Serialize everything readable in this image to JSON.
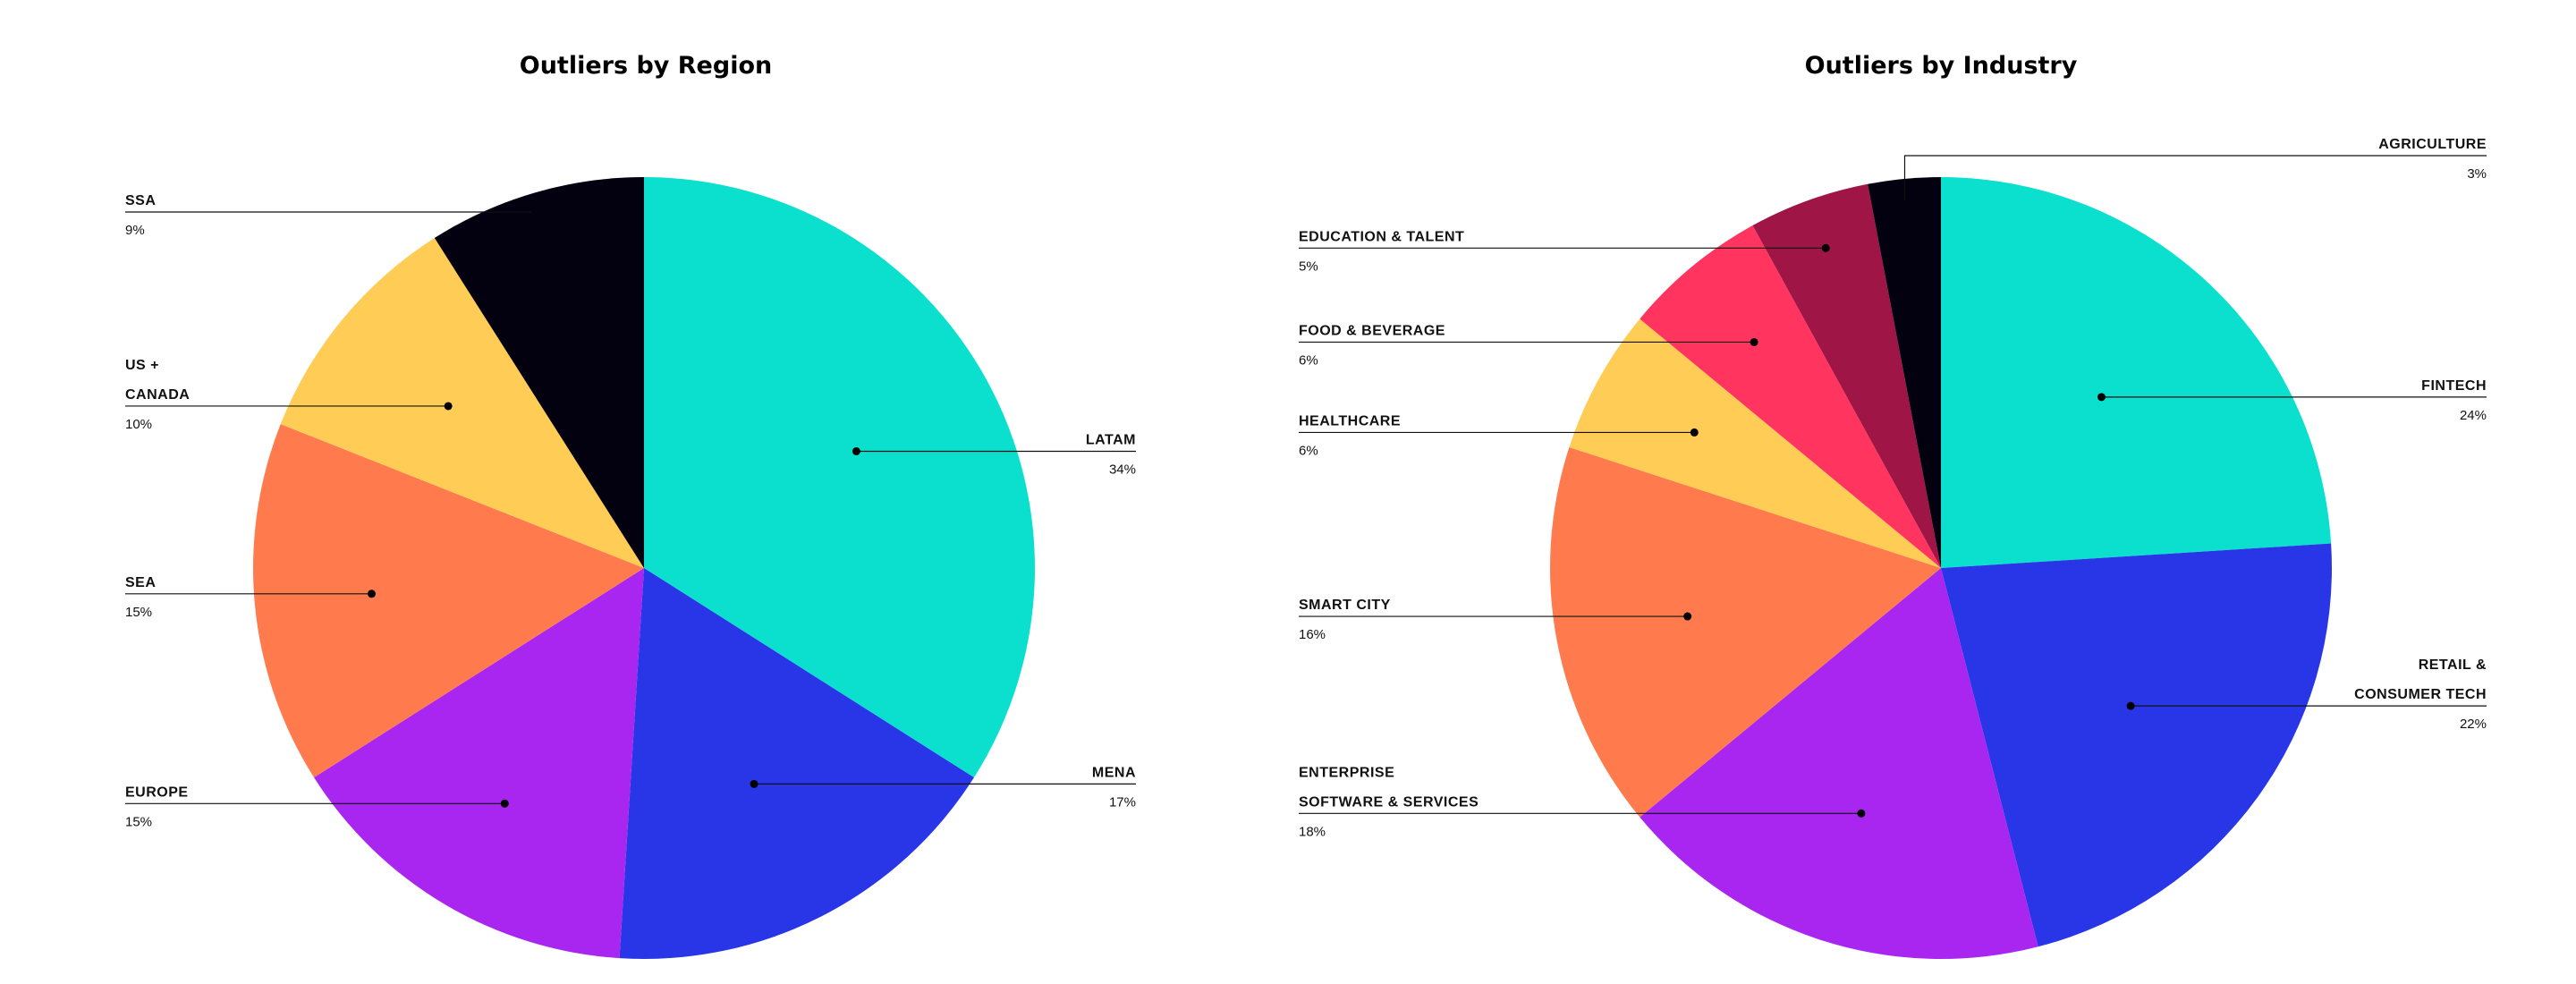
{
  "chart_data": [
    {
      "type": "pie",
      "title": "Outliers by Region",
      "slices": [
        {
          "label": [
            "LATAM"
          ],
          "value": 34,
          "pct_text": "34%",
          "color": "#0BE0CF"
        },
        {
          "label": [
            "MENA"
          ],
          "value": 17,
          "pct_text": "17%",
          "color": "#2836E8"
        },
        {
          "label": [
            "EUROPE"
          ],
          "value": 15,
          "pct_text": "15%",
          "color": "#A826F0"
        },
        {
          "label": [
            "SEA"
          ],
          "value": 15,
          "pct_text": "15%",
          "color": "#FF7A4D"
        },
        {
          "label": [
            "US +",
            "CANADA"
          ],
          "value": 10,
          "pct_text": "10%",
          "color": "#FFCC55"
        },
        {
          "label": [
            "SSA"
          ],
          "value": 9,
          "pct_text": "9%",
          "color": "#03000F"
        }
      ]
    },
    {
      "type": "pie",
      "title": "Outliers by Industry",
      "slices": [
        {
          "label": [
            "FINTECH"
          ],
          "value": 24,
          "pct_text": "24%",
          "color": "#0BE0CF"
        },
        {
          "label": [
            "RETAIL &",
            "CONSUMER TECH"
          ],
          "value": 22,
          "pct_text": "22%",
          "color": "#2836E8"
        },
        {
          "label": [
            "ENTERPRISE",
            "SOFTWARE & SERVICES"
          ],
          "value": 18,
          "pct_text": "18%",
          "color": "#A826F0"
        },
        {
          "label": [
            "SMART CITY"
          ],
          "value": 16,
          "pct_text": "16%",
          "color": "#FF7A4D"
        },
        {
          "label": [
            "HEALTHCARE"
          ],
          "value": 6,
          "pct_text": "6%",
          "color": "#FFCC55"
        },
        {
          "label": [
            "FOOD & BEVERAGE"
          ],
          "value": 6,
          "pct_text": "6%",
          "color": "#FF3560"
        },
        {
          "label": [
            "EDUCATION & TALENT"
          ],
          "value": 5,
          "pct_text": "5%",
          "color": "#9E1546"
        },
        {
          "label": [
            "AGRICULTURE"
          ],
          "value": 3,
          "pct_text": "3%",
          "color": "#03000F"
        }
      ]
    }
  ]
}
